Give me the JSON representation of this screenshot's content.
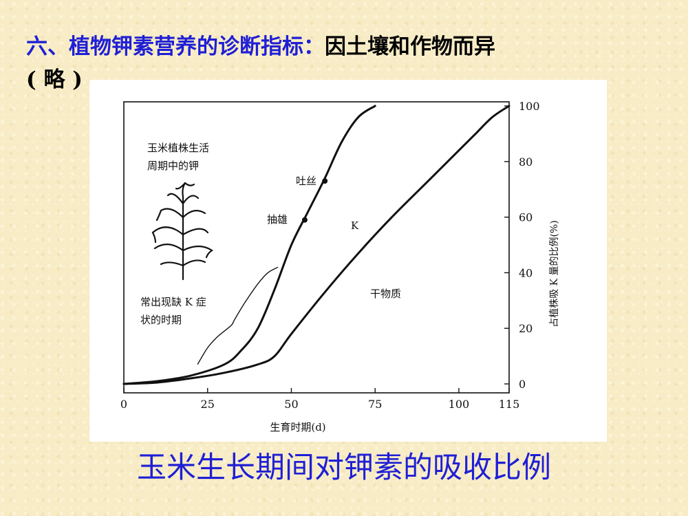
{
  "slide": {
    "heading_prefix": "六、",
    "heading_blue": "植物钾素营养的诊断指标：",
    "heading_black": "因土壤和作物而异",
    "heading_line2": "( 略 )",
    "caption": "玉米生长期间对钾素的吸收比例"
  },
  "chart_data": {
    "type": "line",
    "title_lines": [
      "玉米植株生活",
      "周期中的钾"
    ],
    "xlabel": "生育时期(d)",
    "ylabel": "占植株吸 K 量的比例(%)",
    "xlim": [
      0,
      115
    ],
    "ylim": [
      0,
      100
    ],
    "x_ticks": [
      "0",
      "25",
      "50",
      "75",
      "100",
      "115"
    ],
    "y_ticks": [
      "0",
      "20",
      "40",
      "60",
      "80",
      "100"
    ],
    "series": [
      {
        "name": "K",
        "x": [
          0,
          10,
          20,
          30,
          35,
          40,
          45,
          50,
          55,
          60,
          65,
          70,
          75
        ],
        "y": [
          0,
          1,
          3,
          7,
          12,
          20,
          34,
          50,
          62,
          74,
          87,
          96,
          100
        ]
      },
      {
        "name": "干物质",
        "x": [
          0,
          10,
          20,
          30,
          40,
          45,
          50,
          60,
          70,
          80,
          90,
          100,
          105,
          110,
          115
        ],
        "y": [
          0,
          0.5,
          2,
          4,
          7,
          10,
          18,
          33,
          47,
          60,
          72,
          84,
          90,
          96,
          100
        ]
      }
    ],
    "stage_markers": [
      {
        "label": "抽雄",
        "x": 54,
        "y": 59
      },
      {
        "label": "吐丝",
        "x": 60,
        "y": 73
      }
    ],
    "annotation": {
      "label_lines": [
        "常出现缺 K 症",
        "状的时期"
      ],
      "x": [
        22,
        25,
        28,
        32,
        33,
        36,
        40,
        43,
        46
      ],
      "y": [
        7,
        13,
        17,
        21,
        23,
        29,
        36,
        40,
        42
      ]
    }
  }
}
